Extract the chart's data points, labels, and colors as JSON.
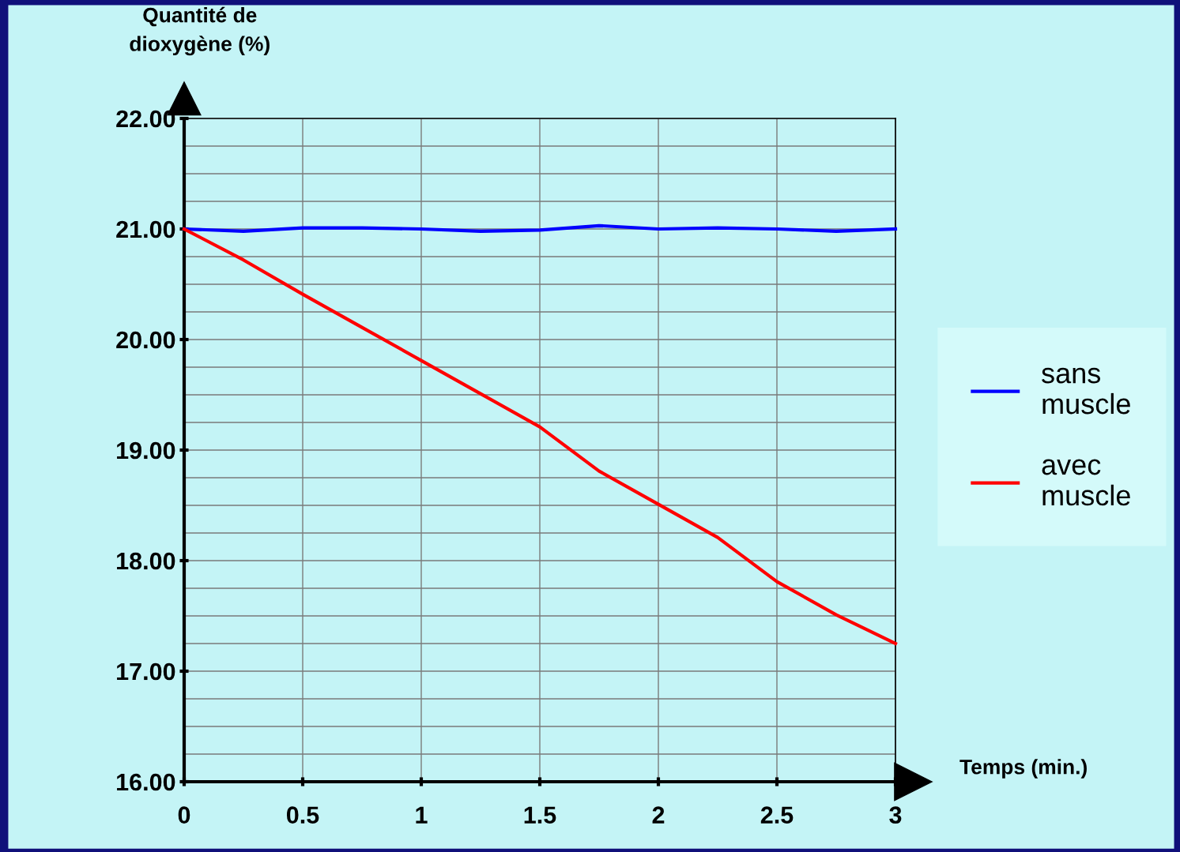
{
  "chart_data": {
    "type": "line",
    "ylabel": "Quantité de\ndioxygène (%)",
    "xlabel": "Temps (min.)",
    "x": [
      0,
      0.25,
      0.5,
      0.75,
      1,
      1.25,
      1.5,
      1.75,
      2,
      2.25,
      2.5,
      2.75,
      3
    ],
    "series": [
      {
        "name": "sans muscle",
        "color": "#0000ff",
        "values": [
          21.0,
          20.98,
          21.01,
          21.01,
          21.0,
          20.98,
          20.99,
          21.03,
          21.0,
          21.01,
          21.0,
          20.98,
          21.0
        ]
      },
      {
        "name": "avec muscle",
        "color": "#ff0000",
        "values": [
          21.0,
          20.72,
          20.41,
          20.11,
          19.81,
          19.51,
          19.21,
          18.81,
          18.51,
          18.21,
          17.81,
          17.51,
          17.25
        ]
      }
    ],
    "xlim": [
      0,
      3
    ],
    "xticks": [
      0,
      0.5,
      1,
      1.5,
      2,
      2.5,
      3
    ],
    "ylim": [
      16,
      22
    ],
    "yticks": [
      {
        "value": 16,
        "label": "16.00"
      },
      {
        "value": 16.25,
        "label": null
      },
      {
        "value": 16.5,
        "label": null
      },
      {
        "value": 16.75,
        "label": null
      },
      {
        "value": 17,
        "label": "17.00"
      },
      {
        "value": 17.25,
        "label": null
      },
      {
        "value": 17.5,
        "label": null
      },
      {
        "value": 17.75,
        "label": null
      },
      {
        "value": 18,
        "label": "18.00"
      },
      {
        "value": 18.25,
        "label": null
      },
      {
        "value": 18.5,
        "label": null
      },
      {
        "value": 18.75,
        "label": null
      },
      {
        "value": 19,
        "label": "19.00"
      },
      {
        "value": 19.25,
        "label": null
      },
      {
        "value": 19.5,
        "label": null
      },
      {
        "value": 19.75,
        "label": null
      },
      {
        "value": 20,
        "label": "20.00"
      },
      {
        "value": 20.25,
        "label": null
      },
      {
        "value": 20.5,
        "label": null
      },
      {
        "value": 20.75,
        "label": null
      },
      {
        "value": 21,
        "label": "21.00"
      },
      {
        "value": 21.25,
        "label": null
      },
      {
        "value": 21.5,
        "label": null
      },
      {
        "value": 21.75,
        "label": null
      },
      {
        "value": 22,
        "label": "22.00"
      }
    ],
    "grid": true,
    "legend": "right",
    "marker": "none",
    "line_style": "solid"
  }
}
